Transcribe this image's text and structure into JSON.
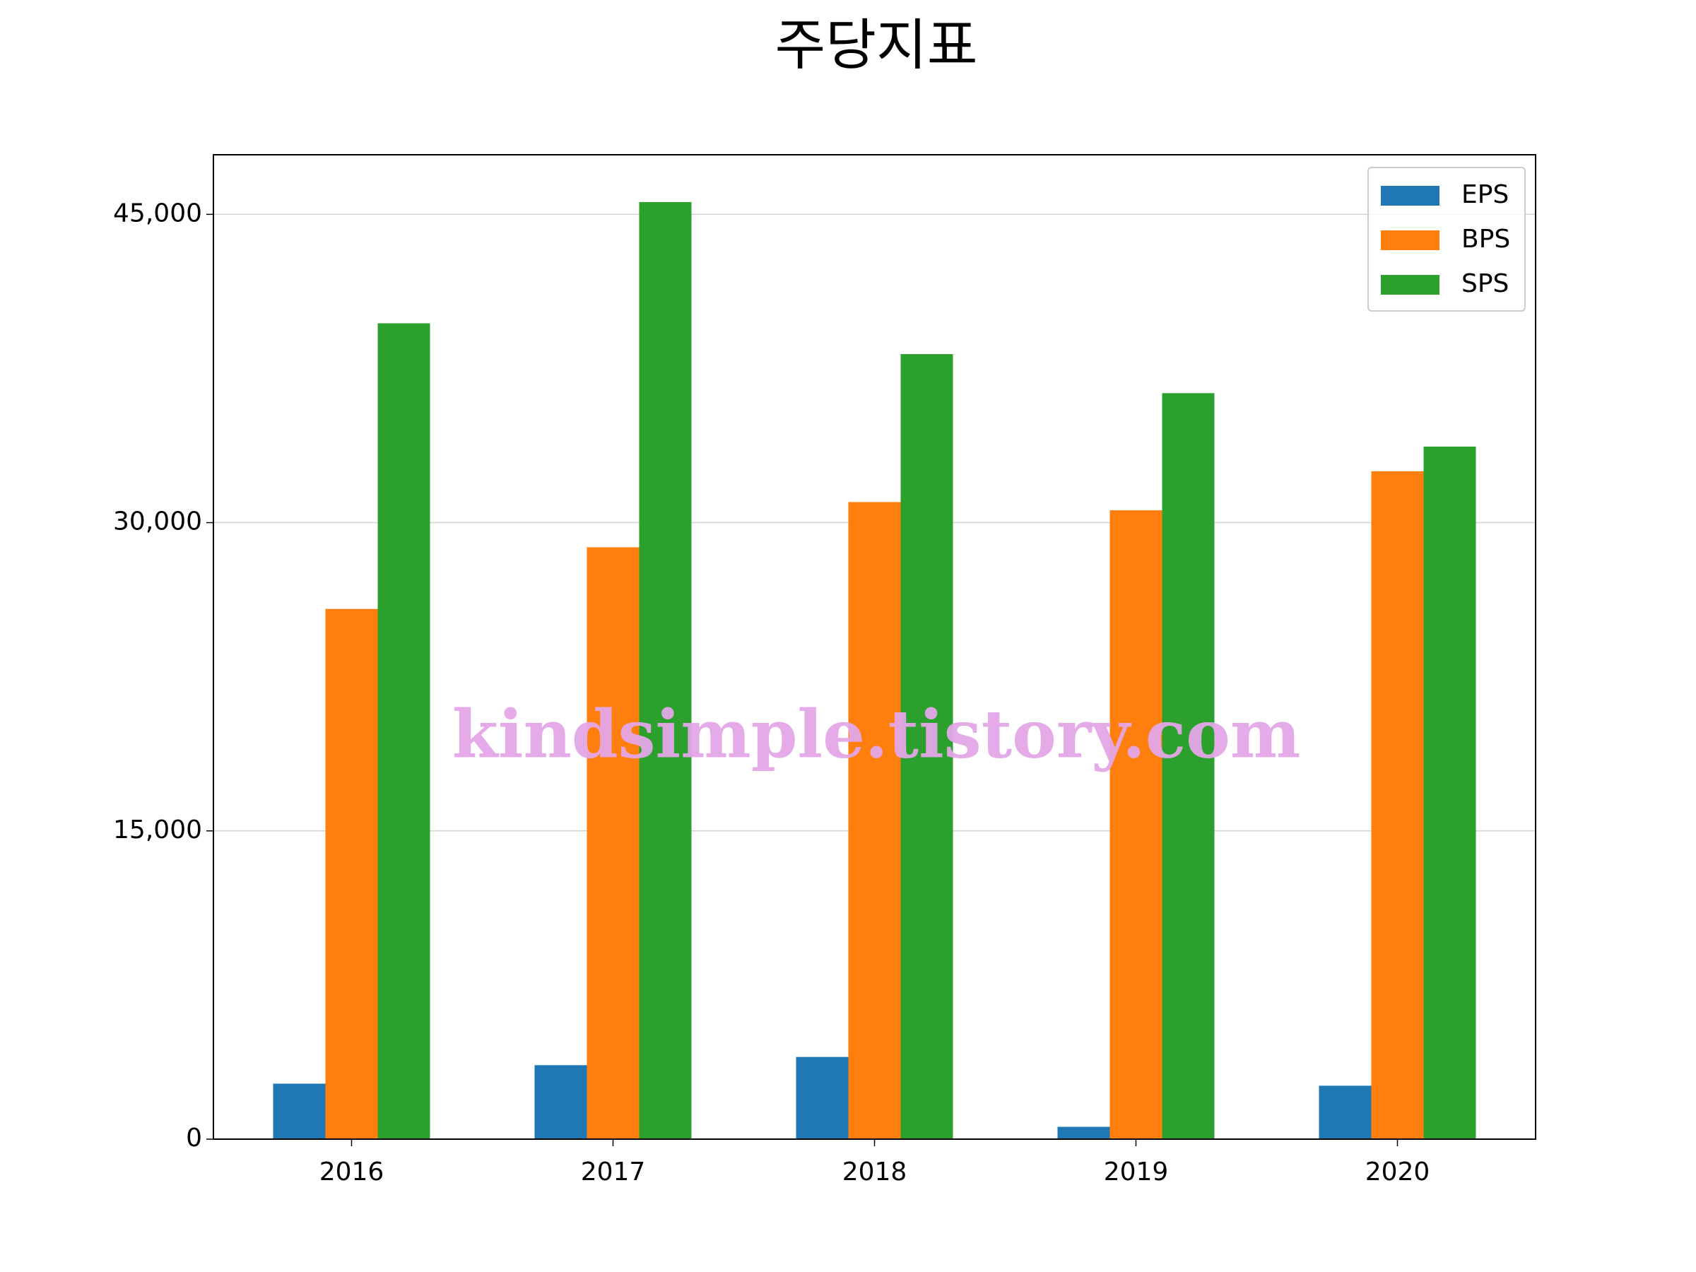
{
  "chart_data": {
    "type": "bar",
    "title": "주당지표",
    "categories": [
      "2016",
      "2017",
      "2018",
      "2019",
      "2020"
    ],
    "series": [
      {
        "name": "EPS",
        "color": "#1f77b4",
        "values": [
          2700,
          3600,
          4000,
          600,
          2600
        ]
      },
      {
        "name": "BPS",
        "color": "#ff7f0e",
        "values": [
          25800,
          28800,
          31000,
          30600,
          32500
        ]
      },
      {
        "name": "SPS",
        "color": "#2ca02c",
        "values": [
          39700,
          45600,
          38200,
          36300,
          33700
        ]
      }
    ],
    "ylim": [
      0,
      47900
    ],
    "yticks": [
      0,
      {
        "value": 15000,
        "label": "15,000"
      },
      {
        "value": 30000,
        "label": "30,000"
      },
      {
        "value": 45000,
        "label": "45,000"
      }
    ],
    "grid": true,
    "legend": "upper right",
    "watermark": "kindsimple.tistory.com"
  }
}
